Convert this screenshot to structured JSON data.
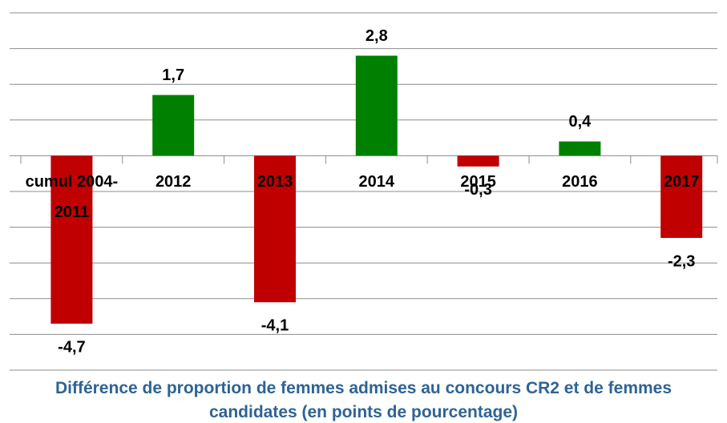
{
  "chart_data": {
    "type": "bar",
    "title": "Différence de proportion de femmes admises au concours CR2 et de femmes candidates (en points de pourcentage)",
    "categories": [
      "cumul 2004-2011",
      "2012",
      "2013",
      "2014",
      "2015",
      "2016",
      "2017"
    ],
    "values": [
      -4.7,
      1.7,
      -4.1,
      2.8,
      -0.3,
      0.4,
      -2.3
    ],
    "value_labels": [
      "-4,7",
      "1,7",
      "-4,1",
      "2,8",
      "-0,3",
      "0,4",
      "-2,3"
    ],
    "positive_color": "#008000",
    "negative_color": "#c00000",
    "ylim": [
      -6,
      4
    ],
    "yticks": [
      -6,
      -5,
      -4,
      -3,
      -2,
      -1,
      0,
      1,
      2,
      3,
      4
    ],
    "grid": true
  }
}
